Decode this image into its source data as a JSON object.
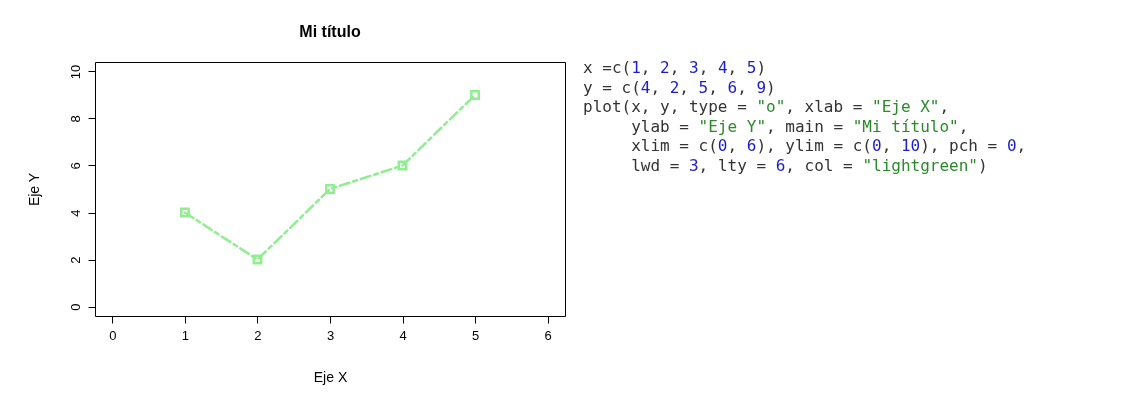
{
  "chart_data": {
    "type": "line",
    "title": "Mi título",
    "xlabel": "Eje X",
    "ylabel": "Eje Y",
    "x": [
      1,
      2,
      3,
      4,
      5
    ],
    "series": [
      {
        "color": "#90ee90",
        "values": [
          4,
          2,
          5,
          6,
          9
        ]
      }
    ],
    "xlim": [
      -0.24,
      6.24
    ],
    "ylim": [
      -0.4,
      10.4
    ],
    "xticks": [
      0,
      1,
      2,
      3,
      4,
      5,
      6
    ],
    "yticks": [
      0,
      2,
      4,
      6,
      8,
      10
    ],
    "marker": "square",
    "line_style": "dashed",
    "annotations": [
      "x =c(1, 2, 3, 4, 5)",
      "y = c(4, 2, 5, 6, 9)",
      "plot(x, y, type = \"o\", xlab = \"Eje X\",",
      "     ylab = \"Eje Y\", main = \"Mi título\",",
      "     xlim = c(0, 6), ylim = c(0, 10), pch = 0,",
      "     lwd = 3, lty = 6, col = \"lightgreen\")"
    ]
  }
}
